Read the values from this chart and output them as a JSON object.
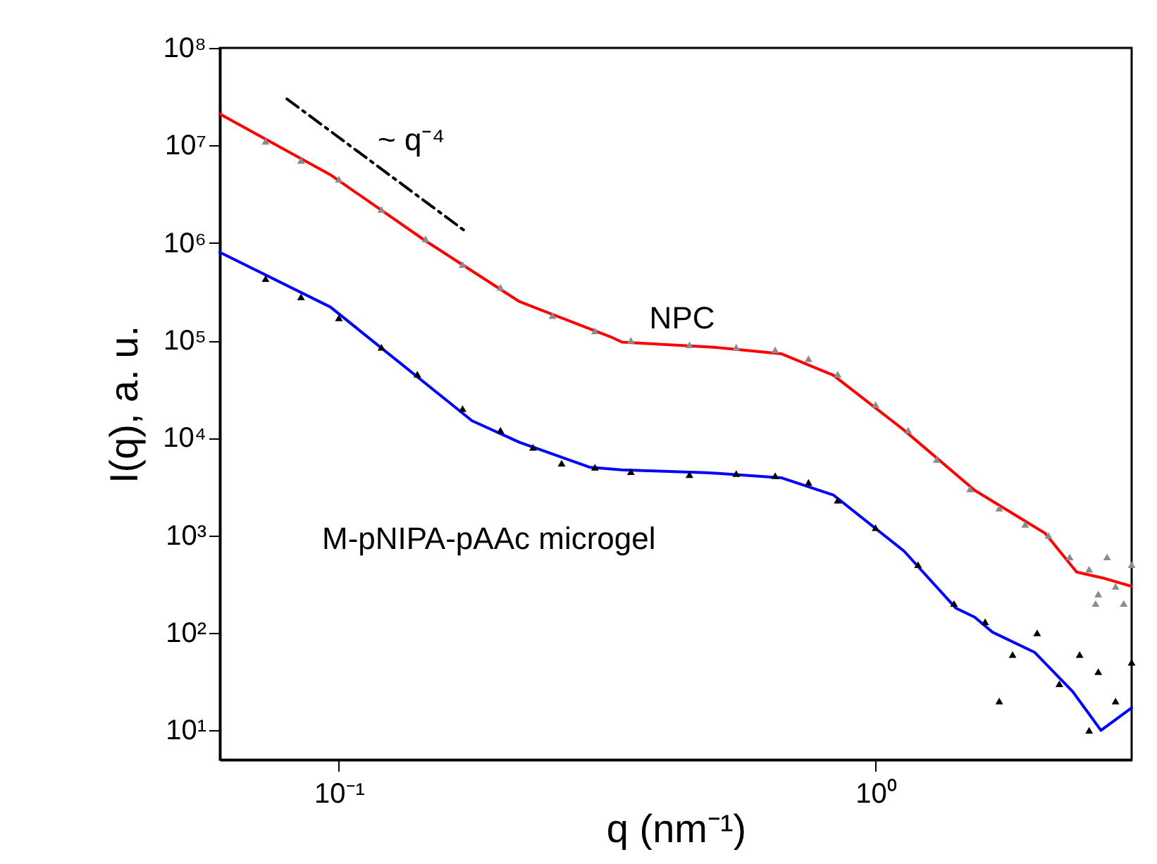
{
  "chart_data": {
    "type": "line",
    "xlabel": "q (nm⁻¹)",
    "ylabel": "I(q), a. u.",
    "log": "xy",
    "grid": false,
    "marker": "none",
    "xlim": [
      0.06,
      3
    ],
    "ylim": [
      5,
      100000000
    ],
    "xticks": [
      {
        "value": 0.1,
        "label": "10⁻¹"
      },
      {
        "value": 1,
        "label": "10⁰"
      }
    ],
    "yticks": [
      {
        "value": 10,
        "label": "10¹"
      },
      {
        "value": 100,
        "label": "10²"
      },
      {
        "value": 1000,
        "label": "10³"
      },
      {
        "value": 10000,
        "label": "10⁴"
      },
      {
        "value": 100000,
        "label": "10⁵"
      },
      {
        "value": 1000000,
        "label": "10⁶"
      },
      {
        "value": 10000000,
        "label": "10⁷"
      },
      {
        "value": 100000000,
        "label": "10⁸"
      }
    ],
    "series": [
      {
        "type": "scatter",
        "marker": "triangle",
        "color": "#8c8c8c",
        "x": [
          0.073,
          0.085,
          0.1,
          0.12,
          0.145,
          0.17,
          0.2,
          0.25,
          0.3,
          0.35,
          0.45,
          0.55,
          0.65,
          0.75,
          0.85,
          1.0,
          1.15,
          1.3,
          1.5,
          1.7,
          1.9,
          2.1,
          2.3,
          2.5,
          2.57,
          2.6,
          2.7,
          2.8,
          2.9,
          3.0
        ],
        "values": [
          11000000,
          7000000,
          4500000,
          2200000,
          1100000,
          600000,
          350000,
          180000,
          125000,
          100000,
          90000,
          85000,
          80000,
          65000,
          45000,
          22000,
          12000,
          6000,
          3000,
          1900,
          1300,
          1000,
          600,
          450,
          200,
          250,
          600,
          300,
          200,
          500
        ]
      },
      {
        "type": "scatter",
        "marker": "triangle",
        "color": "#000000",
        "x": [
          0.073,
          0.085,
          0.1,
          0.12,
          0.14,
          0.17,
          0.2,
          0.23,
          0.26,
          0.3,
          0.35,
          0.45,
          0.55,
          0.65,
          0.75,
          0.85,
          1.0,
          1.2,
          1.4,
          1.6,
          1.7,
          1.8,
          2.0,
          2.2,
          2.4,
          2.5,
          2.6,
          2.8,
          3.0
        ],
        "values": [
          430000,
          280000,
          170000,
          85000,
          45000,
          20000,
          12000,
          8000,
          5500,
          5000,
          4500,
          4200,
          4300,
          4100,
          3500,
          2300,
          1200,
          500,
          200,
          130,
          20,
          60,
          100,
          30,
          60,
          10,
          40,
          20,
          50
        ]
      },
      {
        "color": "#ff0000",
        "x": [
          0.06,
          0.0964,
          0.145,
          0.217,
          0.323,
          0.337,
          0.5,
          0.667,
          0.834,
          1.13,
          1.53,
          2.07,
          2.37,
          2.68,
          3.0
        ],
        "values": [
          21000000,
          5000000,
          1050000,
          250000,
          107000,
          96000,
          85000,
          73000,
          44000,
          12000,
          2900,
          1050,
          420,
          360,
          300
        ]
      },
      {
        "color": "#0000ff",
        "x": [
          0.06,
          0.0964,
          0.177,
          0.217,
          0.293,
          0.337,
          0.484,
          0.667,
          0.834,
          1.13,
          1.41,
          1.53,
          1.65,
          1.98,
          2.33,
          2.63,
          3.0
        ],
        "values": [
          800000,
          220000,
          15000,
          9000,
          5000,
          4700,
          4400,
          3900,
          2600,
          690,
          180,
          145,
          102,
          63,
          25,
          10,
          17
        ]
      },
      {
        "line_style": "dashed",
        "color": "#000000",
        "x": [
          0.08,
          0.171
        ],
        "values": [
          30000000,
          1350000
        ]
      }
    ],
    "annotations": [
      "~ q⁻⁴",
      "NPC",
      "M-pNIPA-pAAc microgel"
    ]
  }
}
